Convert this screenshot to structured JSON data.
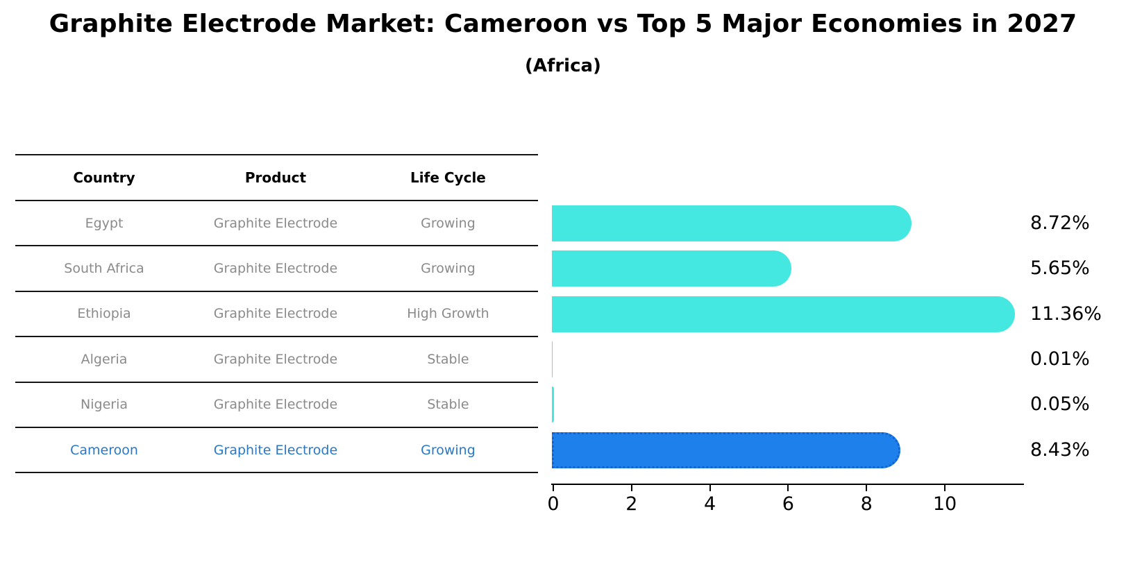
{
  "title": "Graphite Electrode Market: Cameroon vs Top 5 Major Economies in 2027",
  "subtitle": "(Africa)",
  "table": {
    "headers": [
      "Country",
      "Product",
      "Life Cycle"
    ],
    "rows": [
      [
        "Egypt",
        "Graphite Electrode",
        "Growing"
      ],
      [
        "South Africa",
        "Graphite Electrode",
        "Growing"
      ],
      [
        "Ethiopia",
        "Graphite Electrode",
        "High Growth"
      ],
      [
        "Algeria",
        "Graphite Electrode",
        "Stable"
      ],
      [
        "Nigeria",
        "Graphite Electrode",
        "Stable"
      ],
      [
        "Cameroon",
        "Graphite Electrode",
        "Growing"
      ]
    ],
    "highlight_row_index": 5
  },
  "chart_data": {
    "type": "bar",
    "orientation": "horizontal",
    "title": "Graphite Electrode Market: Cameroon vs Top 5 Major Economies in 2027 (Africa)",
    "categories": [
      "Egypt",
      "South Africa",
      "Ethiopia",
      "Algeria",
      "Nigeria",
      "Cameroon"
    ],
    "values": [
      8.72,
      5.65,
      11.36,
      0.01,
      0.05,
      8.43
    ],
    "value_labels": [
      "8.72%",
      "5.65%",
      "11.36%",
      "0.01%",
      "0.05%",
      "8.43%"
    ],
    "x_ticks": [
      0,
      2,
      4,
      6,
      8,
      10
    ],
    "xlim": [
      0,
      12
    ],
    "grid": false,
    "legend": false,
    "highlight_index": 5,
    "unit": "percent"
  },
  "colors": {
    "bar": "#45E8E0",
    "highlight_bar": "#1E80EB",
    "highlight_border": "#1164CF",
    "highlight_text": "#2878C8",
    "row_text": "#8A8A8A",
    "header_text": "#000000",
    "axis": "#000000"
  }
}
